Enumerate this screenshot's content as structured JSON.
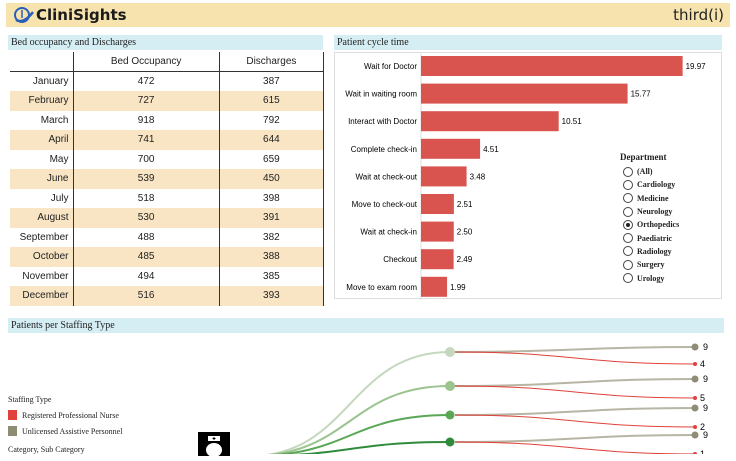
{
  "header": {
    "brand": "CliniSights",
    "partner": "third(i)"
  },
  "bed": {
    "title": "Bed occupancy and Discharges",
    "columns": [
      "Bed Occupancy",
      "Discharges"
    ],
    "rows": [
      [
        "January",
        "472",
        "387"
      ],
      [
        "February",
        "727",
        "615"
      ],
      [
        "March",
        "918",
        "792"
      ],
      [
        "April",
        "741",
        "644"
      ],
      [
        "May",
        "700",
        "659"
      ],
      [
        "June",
        "539",
        "450"
      ],
      [
        "July",
        "518",
        "398"
      ],
      [
        "August",
        "530",
        "391"
      ],
      [
        "September",
        "488",
        "382"
      ],
      [
        "October",
        "485",
        "388"
      ],
      [
        "November",
        "494",
        "385"
      ],
      [
        "December",
        "516",
        "393"
      ]
    ]
  },
  "cycle": {
    "title": "Patient cycle time",
    "bar_color": "#d9534f",
    "chart_data": {
      "type": "bar",
      "orientation": "horizontal",
      "categories": [
        "Wait for Doctor",
        "Wait in waiting room",
        "Interact with Doctor",
        "Complete check-in",
        "Wait at check-out",
        "Move to check-out",
        "Wait at check-in",
        "Checkout",
        "Move to exam room"
      ],
      "values": [
        19.97,
        15.77,
        10.51,
        4.51,
        3.48,
        2.51,
        2.5,
        2.49,
        1.99
      ],
      "labels": [
        "19.97",
        "15.77",
        "10.51",
        "4.51",
        "3.48",
        "2.51",
        "2.50",
        "2.49",
        "1.99"
      ]
    },
    "filter": {
      "title": "Department",
      "options": [
        "(All)",
        "Cardiology",
        "Medicine",
        "Neurology",
        "Orthopedics",
        "Paediatric",
        "Radiology",
        "Surgery",
        "Urology"
      ],
      "selected": "Orthopedics"
    }
  },
  "staffing": {
    "title": "Patients per Staffing Type",
    "legend_title": "Staffing Type",
    "legend": [
      {
        "label": "Registered Professional Nurse",
        "color": "#e0413a"
      },
      {
        "label": "Unlicensed Assistive Personnel",
        "color": "#8f8c74"
      }
    ],
    "category_label": "Category, Sub Category",
    "nodes": [
      {
        "color": "#c5d8bd",
        "rpn": "4",
        "uap": "9"
      },
      {
        "color": "#9cc48f",
        "rpn": "5",
        "uap": "9"
      },
      {
        "color": "#5aa755",
        "rpn": "2",
        "uap": "9"
      },
      {
        "color": "#2f8a3c",
        "rpn": "1",
        "uap": "9"
      }
    ]
  }
}
